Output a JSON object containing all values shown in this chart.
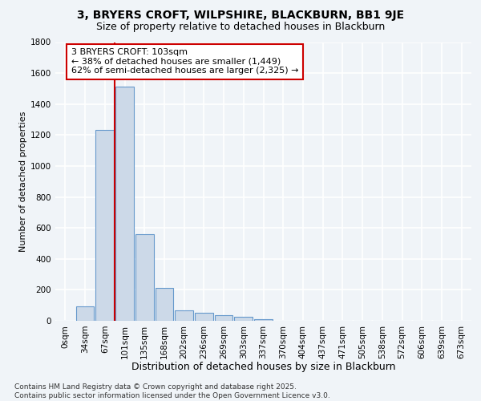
{
  "title1": "3, BRYERS CROFT, WILPSHIRE, BLACKBURN, BB1 9JE",
  "title2": "Size of property relative to detached houses in Blackburn",
  "xlabel": "Distribution of detached houses by size in Blackburn",
  "ylabel": "Number of detached properties",
  "bar_labels": [
    "0sqm",
    "34sqm",
    "67sqm",
    "101sqm",
    "135sqm",
    "168sqm",
    "202sqm",
    "236sqm",
    "269sqm",
    "303sqm",
    "337sqm",
    "370sqm",
    "404sqm",
    "437sqm",
    "471sqm",
    "505sqm",
    "538sqm",
    "572sqm",
    "606sqm",
    "639sqm",
    "673sqm"
  ],
  "bar_values": [
    0,
    95,
    1235,
    1510,
    560,
    210,
    65,
    50,
    35,
    25,
    10,
    0,
    0,
    0,
    0,
    0,
    0,
    0,
    0,
    0,
    0
  ],
  "bar_color": "#ccd9e8",
  "bar_edge_color": "#6699cc",
  "vline_color": "#cc0000",
  "annotation_text": "3 BRYERS CROFT: 103sqm\n← 38% of detached houses are smaller (1,449)\n62% of semi-detached houses are larger (2,325) →",
  "annotation_box_color": "#ffffff",
  "annotation_box_edge": "#cc0000",
  "ylim": [
    0,
    1800
  ],
  "yticks": [
    0,
    200,
    400,
    600,
    800,
    1000,
    1200,
    1400,
    1600,
    1800
  ],
  "footer_text": "Contains HM Land Registry data © Crown copyright and database right 2025.\nContains public sector information licensed under the Open Government Licence v3.0.",
  "bg_color": "#f0f4f8",
  "grid_color": "#ffffff",
  "title1_fontsize": 10,
  "title2_fontsize": 9,
  "xlabel_fontsize": 9,
  "ylabel_fontsize": 8,
  "tick_fontsize": 7.5,
  "annotation_fontsize": 8,
  "footer_fontsize": 6.5
}
